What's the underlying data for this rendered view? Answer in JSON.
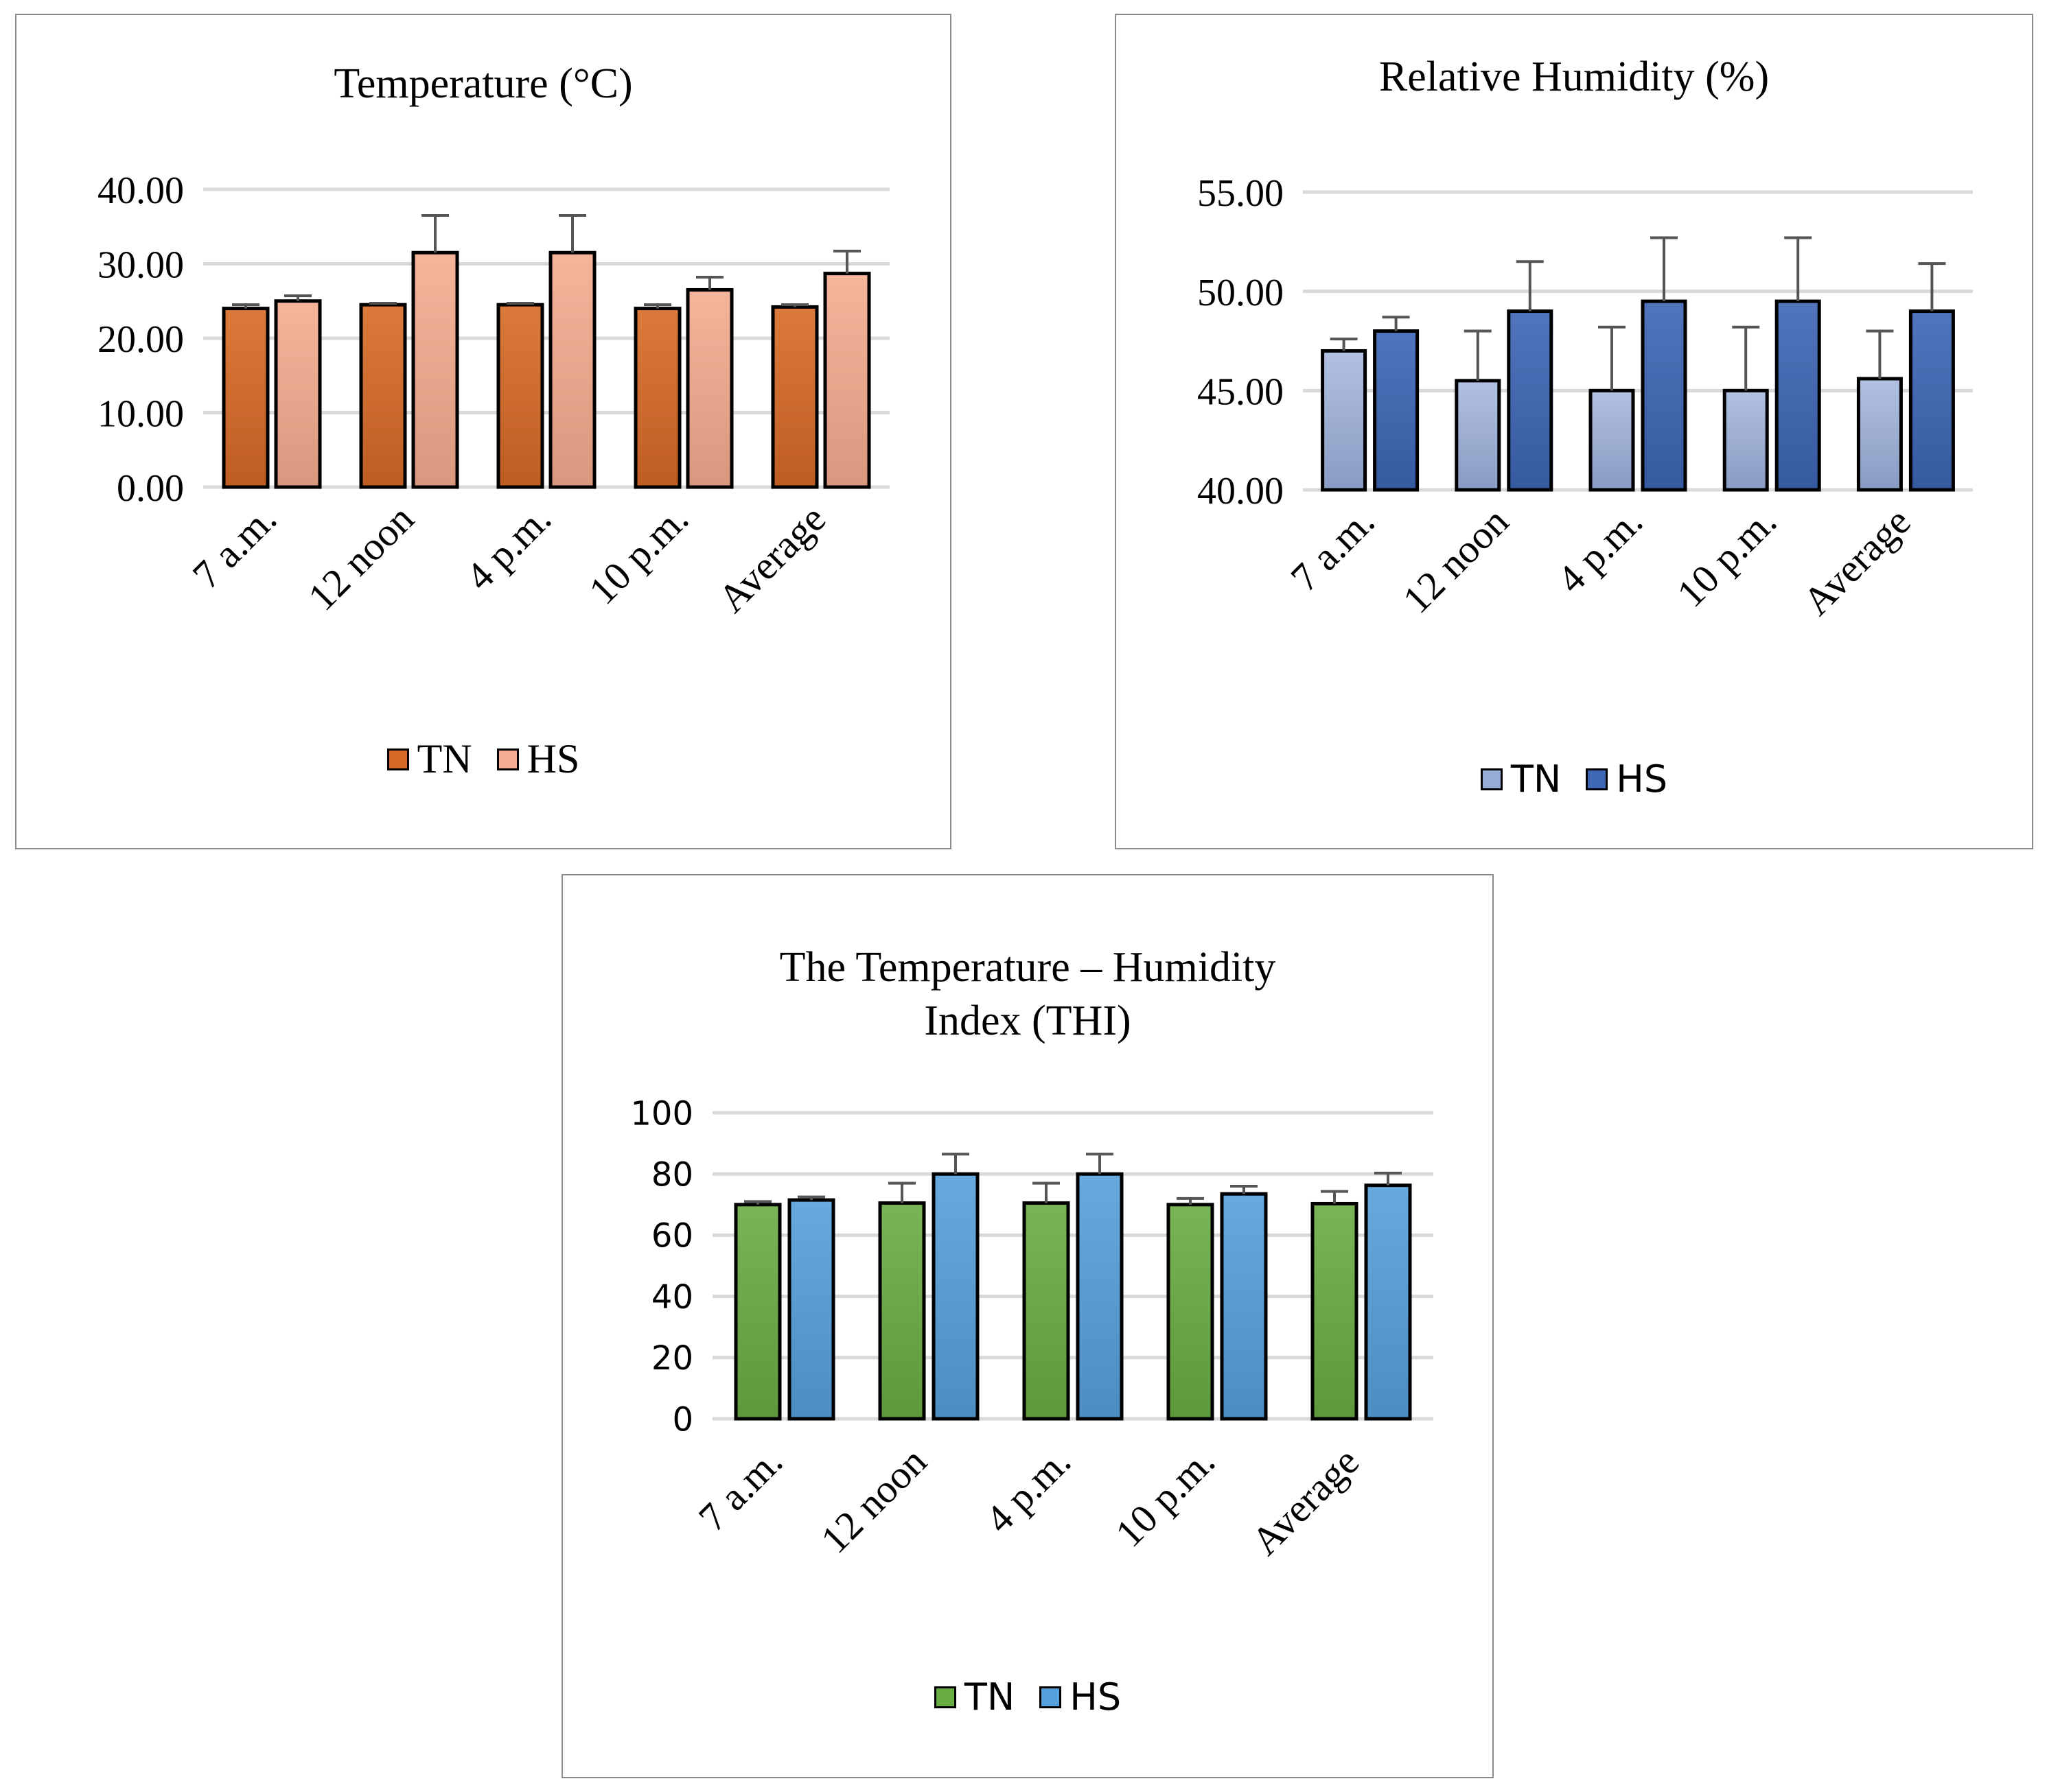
{
  "chart_data": [
    {
      "type": "bar",
      "title": "Temperature (°C)",
      "categories": [
        "7 a.m.",
        "12 noon",
        "4 p.m.",
        "10 p.m.",
        "Average"
      ],
      "ylim": [
        0,
        40
      ],
      "yticks": [
        "0.00",
        "10.00",
        "20.00",
        "30.00",
        "40.00"
      ],
      "grid": true,
      "legend": "bottom",
      "series": [
        {
          "name": "TN",
          "values": [
            24.0,
            24.5,
            24.5,
            24.0,
            24.2
          ],
          "errors": [
            0.5,
            0.2,
            0.2,
            0.5,
            0.3
          ],
          "color": "#d86a27"
        },
        {
          "name": "HS",
          "values": [
            25.0,
            31.5,
            31.5,
            26.5,
            28.7
          ],
          "errors": [
            0.7,
            5.0,
            5.0,
            1.7,
            3.0
          ],
          "color": "#f4ad90"
        }
      ]
    },
    {
      "type": "bar",
      "title": "Relative Humidity (%)",
      "categories": [
        "7 a.m.",
        "12 noon",
        "4 p.m.",
        "10 p.m.",
        "Average"
      ],
      "ylim": [
        40,
        55
      ],
      "yticks": [
        "40.00",
        "45.00",
        "50.00",
        "55.00"
      ],
      "grid": true,
      "legend": "bottom",
      "series": [
        {
          "name": "TN",
          "values": [
            47.0,
            45.5,
            45.0,
            45.0,
            45.6
          ],
          "errors": [
            0.6,
            2.5,
            3.2,
            3.2,
            2.4
          ],
          "color": "#98acd8"
        },
        {
          "name": "HS",
          "values": [
            48.0,
            49.0,
            49.5,
            49.5,
            49.0
          ],
          "errors": [
            0.7,
            2.5,
            3.2,
            3.2,
            2.4
          ],
          "color": "#3d66b5"
        }
      ]
    },
    {
      "type": "bar",
      "title": [
        "The Temperature – Humidity",
        "Index (THI)"
      ],
      "categories": [
        "7 a.m.",
        "12 noon",
        "4 p.m.",
        "10 p.m.",
        "Average"
      ],
      "ylim": [
        0,
        100
      ],
      "yticks": [
        "0",
        "20",
        "40",
        "60",
        "80",
        "100"
      ],
      "grid": true,
      "legend": "bottom",
      "series": [
        {
          "name": "TN",
          "values": [
            70,
            70.5,
            70.5,
            70,
            70.3
          ],
          "errors": [
            1,
            6.5,
            6.5,
            2,
            4
          ],
          "color": "#6aad43"
        },
        {
          "name": "HS",
          "values": [
            71.5,
            80,
            80,
            73.5,
            76.3
          ],
          "errors": [
            1,
            6.5,
            6.5,
            2.5,
            4
          ],
          "color": "#56a0dc"
        }
      ]
    }
  ]
}
